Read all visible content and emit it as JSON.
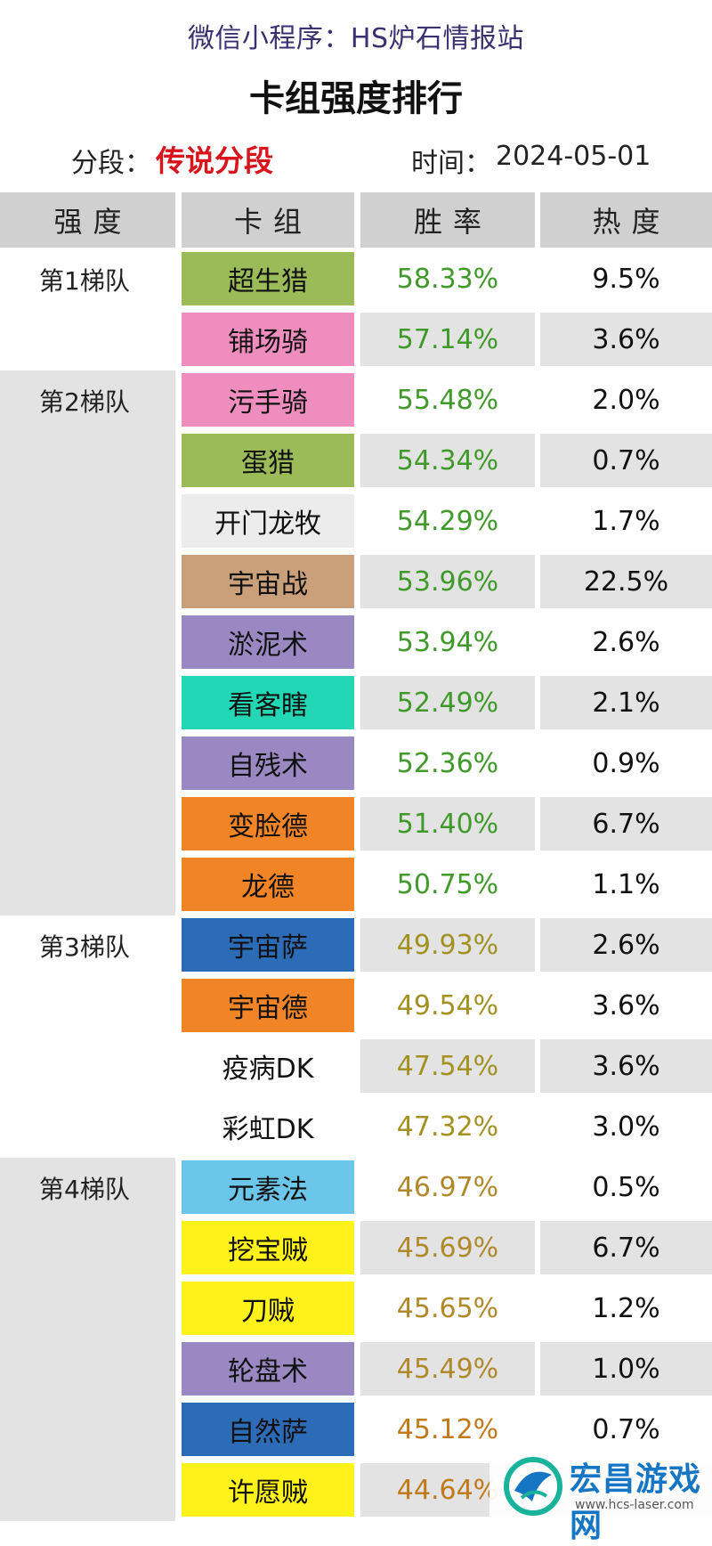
{
  "header": {
    "source": "微信小程序：HS炉石情报站",
    "title": "卡组强度排行"
  },
  "meta": {
    "rank_label": "分段：",
    "rank_value": "传说分段",
    "time_label": "时间：",
    "time_value": "2024-05-01"
  },
  "columns": [
    "强度",
    "卡组",
    "胜率",
    "热度"
  ],
  "colors": {
    "header_bg": "#d0d0d0",
    "shade": "#e3e3e3",
    "rank_red": "#d8141c",
    "win_green": "#3f9a2a",
    "win_olive": "#a39122",
    "win_orange": "#c07a1a",
    "brand_blue": "#1676c4"
  },
  "tiers": [
    {
      "label": "第1梯队",
      "shade_label": false,
      "rows": [
        {
          "deck": "超生猎",
          "deck_color": "#9bbb59",
          "win": "58.33%",
          "win_color": "#3f9a2a",
          "pop": "9.5%",
          "shade": false
        },
        {
          "deck": "铺场骑",
          "deck_color": "#f08dbf",
          "win": "57.14%",
          "win_color": "#3f9a2a",
          "pop": "3.6%",
          "shade": true
        }
      ]
    },
    {
      "label": "第2梯队",
      "shade_label": true,
      "rows": [
        {
          "deck": "污手骑",
          "deck_color": "#f08dbf",
          "win": "55.48%",
          "win_color": "#3f9a2a",
          "pop": "2.0%",
          "shade": false
        },
        {
          "deck": "蛋猎",
          "deck_color": "#9bbb59",
          "win": "54.34%",
          "win_color": "#3f9a2a",
          "pop": "0.7%",
          "shade": true
        },
        {
          "deck": "开门龙牧",
          "deck_color": "#ececec",
          "win": "54.29%",
          "win_color": "#3f9a2a",
          "pop": "1.7%",
          "shade": false
        },
        {
          "deck": "宇宙战",
          "deck_color": "#c9a07a",
          "win": "53.96%",
          "win_color": "#3f9a2a",
          "pop": "22.5%",
          "shade": true
        },
        {
          "deck": "淤泥术",
          "deck_color": "#9a88c2",
          "win": "53.94%",
          "win_color": "#3f9a2a",
          "pop": "2.6%",
          "shade": false
        },
        {
          "deck": "看客瞎",
          "deck_color": "#23d6b4",
          "win": "52.49%",
          "win_color": "#3f9a2a",
          "pop": "2.1%",
          "shade": true
        },
        {
          "deck": "自残术",
          "deck_color": "#9a88c2",
          "win": "52.36%",
          "win_color": "#3f9a2a",
          "pop": "0.9%",
          "shade": false
        },
        {
          "deck": "变脸德",
          "deck_color": "#f08426",
          "win": "51.40%",
          "win_color": "#3f9a2a",
          "pop": "6.7%",
          "shade": true
        },
        {
          "deck": "龙德",
          "deck_color": "#f08426",
          "win": "50.75%",
          "win_color": "#3f9a2a",
          "pop": "1.1%",
          "shade": false
        }
      ]
    },
    {
      "label": "第3梯队",
      "shade_label": false,
      "rows": [
        {
          "deck": "宇宙萨",
          "deck_color": "#2c6cb6",
          "win": "49.93%",
          "win_color": "#a39122",
          "pop": "2.6%",
          "shade": true
        },
        {
          "deck": "宇宙德",
          "deck_color": "#f08426",
          "win": "49.54%",
          "win_color": "#a39122",
          "pop": "3.6%",
          "shade": false
        },
        {
          "deck": "疫病DK",
          "deck_color": "#ffffff",
          "win": "47.54%",
          "win_color": "#a39122",
          "pop": "3.6%",
          "shade": true
        },
        {
          "deck": "彩虹DK",
          "deck_color": "#ffffff",
          "win": "47.32%",
          "win_color": "#a39122",
          "pop": "3.0%",
          "shade": false
        }
      ]
    },
    {
      "label": "第4梯队",
      "shade_label": true,
      "rows": [
        {
          "deck": "元素法",
          "deck_color": "#6cc6ea",
          "win": "46.97%",
          "win_color": "#b0892a",
          "pop": "0.5%",
          "shade": false
        },
        {
          "deck": "挖宝贼",
          "deck_color": "#fff21a",
          "win": "45.69%",
          "win_color": "#b0892a",
          "pop": "6.7%",
          "shade": true
        },
        {
          "deck": "刀贼",
          "deck_color": "#fff21a",
          "win": "45.65%",
          "win_color": "#b0892a",
          "pop": "1.2%",
          "shade": false
        },
        {
          "deck": "轮盘术",
          "deck_color": "#9a88c2",
          "win": "45.49%",
          "win_color": "#b0892a",
          "pop": "1.0%",
          "shade": true
        },
        {
          "deck": "自然萨",
          "deck_color": "#2c6cb6",
          "win": "45.12%",
          "win_color": "#c07a1a",
          "pop": "0.7%",
          "shade": false
        },
        {
          "deck": "许愿贼",
          "deck_color": "#fff21a",
          "win": "44.64%",
          "win_color": "#c07a1a",
          "pop": "",
          "shade": true
        }
      ]
    }
  ],
  "watermark": {
    "name": "宏昌游戏网",
    "url": "www.hcs-laser.com"
  }
}
